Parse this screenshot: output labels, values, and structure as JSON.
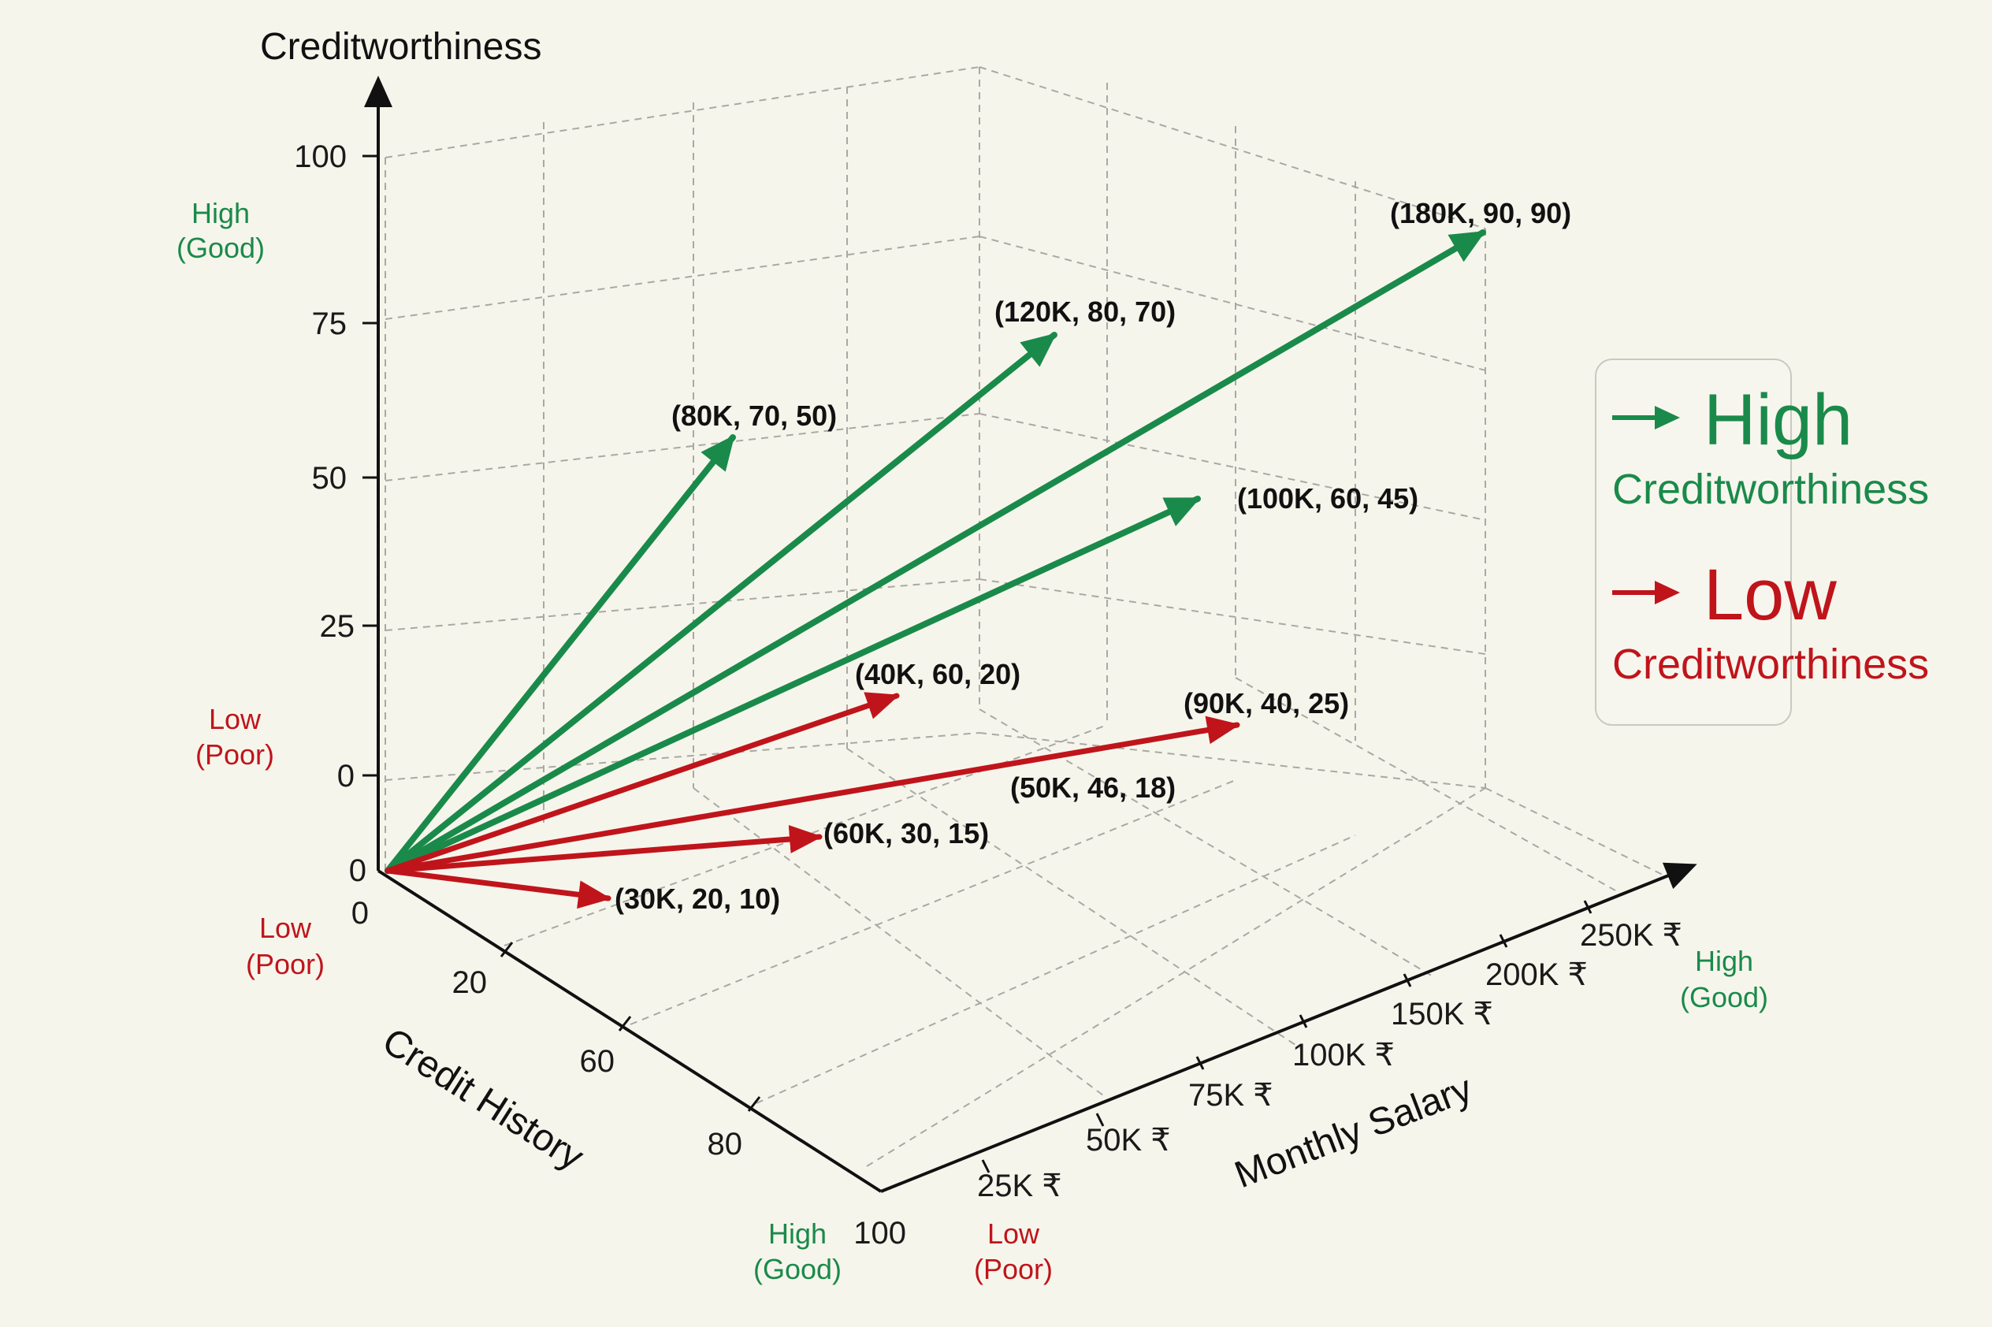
{
  "chart_data": {
    "type": "3d-vector",
    "title": "",
    "axes": {
      "z": {
        "title": "Creditworthiness",
        "ticks": [
          "100",
          "75",
          "50",
          "25",
          "0",
          "0"
        ],
        "range": [
          0,
          100
        ],
        "high_label": [
          "High",
          "(Good)"
        ],
        "low_label": [
          "Low",
          "(Poor)"
        ]
      },
      "x": {
        "title": "Monthly Salary",
        "ticks": [
          "25K ₹",
          "50K ₹",
          "75K ₹",
          "100K ₹",
          "150K ₹",
          "200K ₹",
          "250K ₹"
        ],
        "high_label": [
          "High",
          "(Good)"
        ],
        "low_label": [
          "Low",
          "(Poor)"
        ]
      },
      "y": {
        "title": "Credit History",
        "ticks": [
          "0",
          "20",
          "60",
          "80",
          "100"
        ],
        "range": [
          0,
          100
        ],
        "high_label": [
          "High",
          "(Good)"
        ],
        "low_label": [
          "Low",
          "(Poor)"
        ]
      }
    },
    "vectors": [
      {
        "label": "(80K, 70, 50)",
        "salary_k": 80,
        "history": 70,
        "creditworthiness": 50,
        "class": "high"
      },
      {
        "label": "(120K, 80, 70)",
        "salary_k": 120,
        "history": 80,
        "creditworthiness": 70,
        "class": "high"
      },
      {
        "label": "(180K, 90, 90)",
        "salary_k": 180,
        "history": 90,
        "creditworthiness": 90,
        "class": "high"
      },
      {
        "label": "(100K, 60, 45)",
        "salary_k": 100,
        "history": 60,
        "creditworthiness": 45,
        "class": "high"
      },
      {
        "label": "(40K, 60, 20)",
        "salary_k": 40,
        "history": 60,
        "creditworthiness": 20,
        "class": "low"
      },
      {
        "label": "(90K, 40, 25)",
        "salary_k": 90,
        "history": 40,
        "creditworthiness": 25,
        "class": "low"
      },
      {
        "label": "(60K, 30, 15)",
        "salary_k": 60,
        "history": 30,
        "creditworthiness": 15,
        "class": "low"
      },
      {
        "label": "(30K, 20, 10)",
        "salary_k": 30,
        "history": 20,
        "creditworthiness": 10,
        "class": "low"
      }
    ],
    "extra_labels": [
      "(50K, 46, 18)"
    ],
    "grid": true,
    "legend": {
      "placement": "right",
      "entries": [
        {
          "big": "High",
          "sub": "Creditworthiness",
          "color": "#1a8a4a"
        },
        {
          "big": "Low",
          "sub": "Creditworthiness",
          "color": "#c0141b"
        }
      ]
    },
    "colors": {
      "high": "#1a8a4a",
      "low": "#c0141b"
    }
  }
}
